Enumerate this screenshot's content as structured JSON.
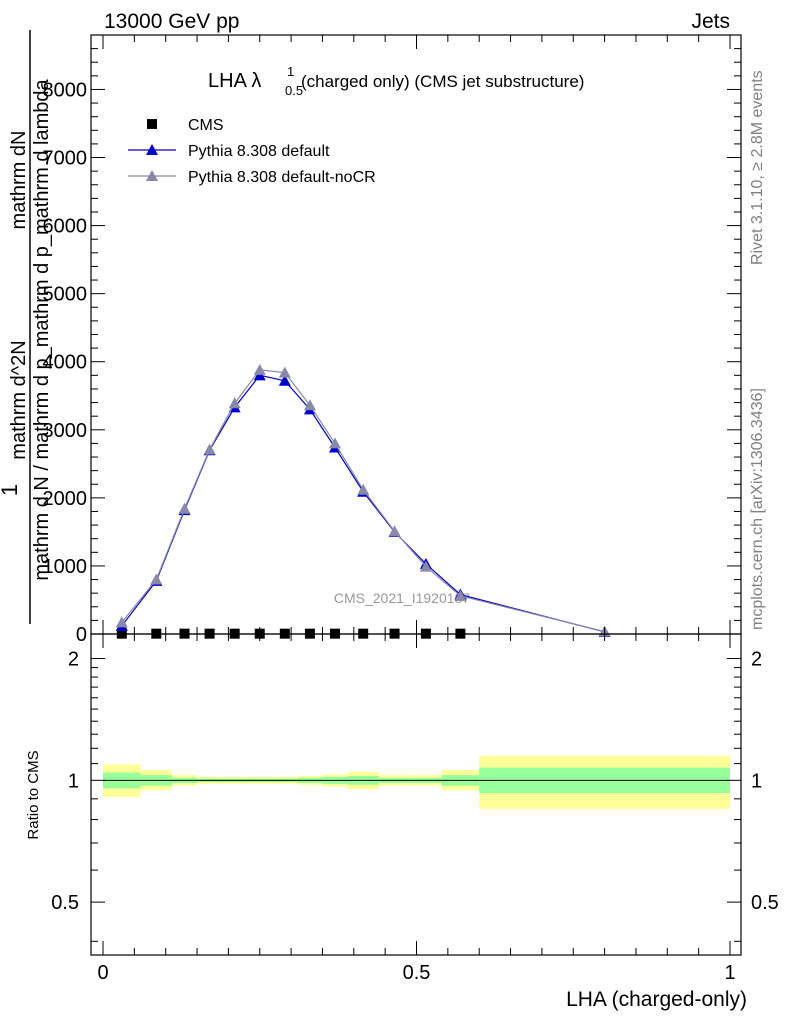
{
  "header": {
    "left": "13000 GeV pp",
    "right": "Jets"
  },
  "side": {
    "rivet": "Rivet 3.1.10, ≥ 2.8M events",
    "mcplots": "mcplots.cern.ch [arXiv:1306.3436]"
  },
  "watermark": "CMS_2021_I1920187",
  "chart_data": {
    "type": "line",
    "title_main": "LHA λ",
    "title_sup": "1",
    "title_sub": "0.5",
    "title_rest": "(charged only) (CMS jet substructure)",
    "xlabel": "LHA (charged-only)",
    "ylabel_numerator": "mathrm dN",
    "ylabel_denominator": "mathrm d N / mathrm d p_mathrm d p_mathrm d lambda",
    "ylabel_prefix": "1",
    "ylabel_numerator2": "mathrm d^2N",
    "ratio_ylabel": "Ratio to CMS",
    "xlim": [
      0,
      1
    ],
    "ylim": [
      0,
      8800
    ],
    "ratio_ylim": [
      0.37,
      2.3
    ],
    "x_ticks": [
      "0",
      "0.5",
      "1"
    ],
    "y_ticks": [
      "0",
      "1000",
      "2000",
      "3000",
      "4000",
      "5000",
      "6000",
      "7000",
      "8000"
    ],
    "ratio_ticks": [
      "0.5",
      "1",
      "2"
    ],
    "legend": {
      "position": "top-left",
      "entries": [
        "CMS",
        "Pythia 8.308 default",
        "Pythia 8.308 default-noCR"
      ]
    },
    "series": [
      {
        "name": "CMS",
        "color": "#000000",
        "marker": "square",
        "x": [
          0.03,
          0.085,
          0.13,
          0.17,
          0.21,
          0.25,
          0.29,
          0.33,
          0.37,
          0.415,
          0.465,
          0.515,
          0.57
        ],
        "values": [
          5,
          5,
          5,
          5,
          5,
          5,
          5,
          5,
          5,
          5,
          5,
          5,
          5
        ]
      },
      {
        "name": "Pythia 8.308 default",
        "color": "#0000cc",
        "marker": "triangle",
        "x": [
          0.03,
          0.085,
          0.13,
          0.17,
          0.21,
          0.25,
          0.29,
          0.33,
          0.37,
          0.415,
          0.465,
          0.515,
          0.57,
          0.8
        ],
        "values": [
          120,
          780,
          1820,
          2700,
          3330,
          3800,
          3720,
          3300,
          2740,
          2090,
          1500,
          1030,
          580,
          30
        ]
      },
      {
        "name": "Pythia 8.308 default-noCR",
        "color": "#8888aa",
        "marker": "triangle",
        "x": [
          0.03,
          0.085,
          0.13,
          0.17,
          0.21,
          0.25,
          0.29,
          0.33,
          0.37,
          0.415,
          0.465,
          0.515,
          0.57,
          0.8
        ],
        "values": [
          170,
          800,
          1840,
          2710,
          3390,
          3880,
          3840,
          3360,
          2800,
          2120,
          1510,
          990,
          560,
          35
        ]
      }
    ],
    "ratio_bands": {
      "edges": [
        0,
        0.06,
        0.11,
        0.15,
        0.19,
        0.23,
        0.27,
        0.31,
        0.35,
        0.39,
        0.44,
        0.49,
        0.54,
        0.6,
        1.0
      ],
      "inner_lo": [
        0.955,
        0.97,
        0.985,
        0.99,
        0.99,
        0.99,
        0.99,
        0.985,
        0.98,
        0.975,
        0.985,
        0.985,
        0.97,
        0.93
      ],
      "inner_hi": [
        1.045,
        1.03,
        1.015,
        1.01,
        1.01,
        1.01,
        1.01,
        1.015,
        1.02,
        1.025,
        1.015,
        1.015,
        1.03,
        1.075
      ],
      "outer_lo": [
        0.91,
        0.945,
        0.97,
        0.98,
        0.98,
        0.98,
        0.98,
        0.975,
        0.965,
        0.95,
        0.97,
        0.97,
        0.945,
        0.85
      ],
      "outer_hi": [
        1.095,
        1.06,
        1.03,
        1.02,
        1.02,
        1.02,
        1.02,
        1.025,
        1.035,
        1.05,
        1.03,
        1.03,
        1.06,
        1.15
      ],
      "inner_color": "#99ff99",
      "outer_color": "#ffff99"
    }
  }
}
